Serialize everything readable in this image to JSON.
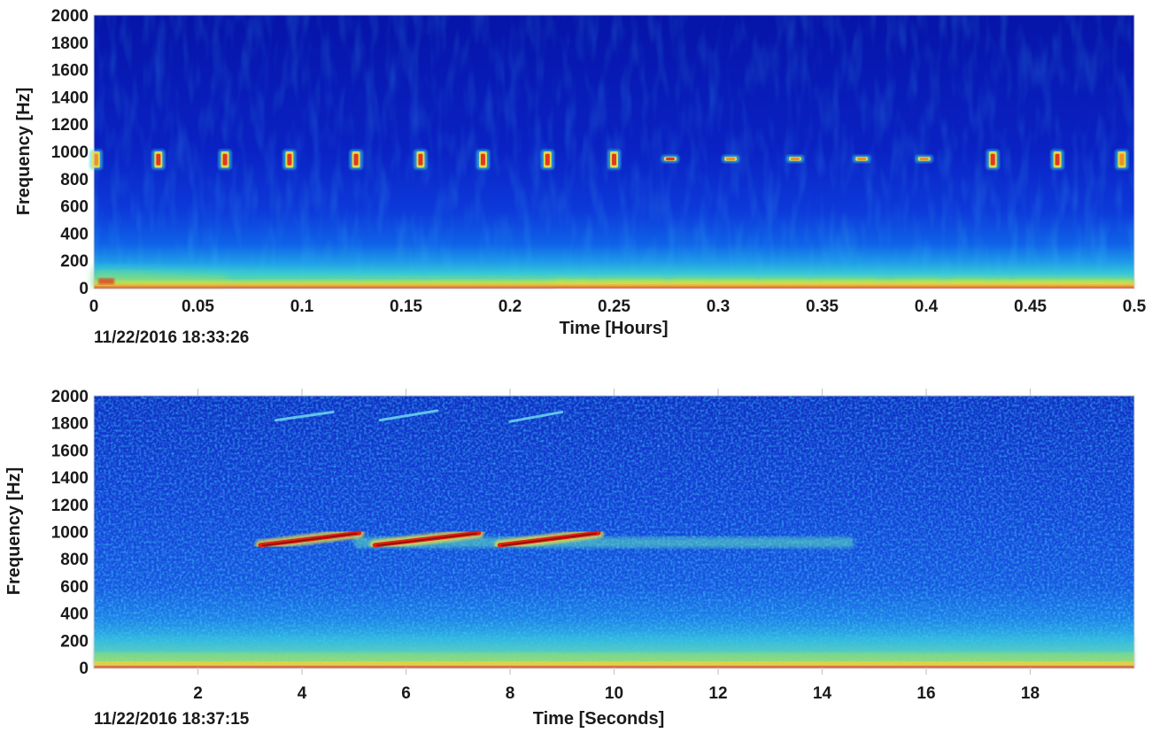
{
  "chart_data": [
    {
      "type": "heatmap",
      "title": "",
      "xlabel": "Time [Hours]",
      "ylabel": "Frequency [Hz]",
      "xlim": [
        0,
        0.5
      ],
      "ylim": [
        0,
        2000
      ],
      "x_ticks": [
        0,
        0.05,
        0.1,
        0.15,
        0.2,
        0.25,
        0.3,
        0.35,
        0.4,
        0.45,
        0.5
      ],
      "y_ticks": [
        0,
        200,
        400,
        600,
        800,
        1000,
        1200,
        1400,
        1600,
        1800,
        2000
      ],
      "timestamp": "11/22/2016 18:33:26",
      "colormap": "jet",
      "background_color": "#0a1fb8",
      "grid": false,
      "pulses": [
        {
          "t": 0.001,
          "f_low": 880,
          "f_high": 1000,
          "strength": 0.55
        },
        {
          "t": 0.031,
          "f_low": 880,
          "f_high": 1000,
          "strength": 0.85
        },
        {
          "t": 0.063,
          "f_low": 880,
          "f_high": 1000,
          "strength": 0.95
        },
        {
          "t": 0.094,
          "f_low": 880,
          "f_high": 1000,
          "strength": 0.75
        },
        {
          "t": 0.126,
          "f_low": 880,
          "f_high": 1000,
          "strength": 0.8
        },
        {
          "t": 0.157,
          "f_low": 880,
          "f_high": 1000,
          "strength": 0.8
        },
        {
          "t": 0.187,
          "f_low": 880,
          "f_high": 1000,
          "strength": 0.9
        },
        {
          "t": 0.218,
          "f_low": 880,
          "f_high": 1000,
          "strength": 0.95
        },
        {
          "t": 0.25,
          "f_low": 880,
          "f_high": 1000,
          "strength": 0.8
        },
        {
          "t": 0.277,
          "f_low": 930,
          "f_high": 960,
          "strength": 0.85
        },
        {
          "t": 0.306,
          "f_low": 930,
          "f_high": 960,
          "strength": 0.6
        },
        {
          "t": 0.337,
          "f_low": 930,
          "f_high": 960,
          "strength": 0.65
        },
        {
          "t": 0.369,
          "f_low": 930,
          "f_high": 960,
          "strength": 0.5
        },
        {
          "t": 0.399,
          "f_low": 930,
          "f_high": 960,
          "strength": 0.5
        },
        {
          "t": 0.432,
          "f_low": 880,
          "f_high": 1000,
          "strength": 0.75
        },
        {
          "t": 0.463,
          "f_low": 880,
          "f_high": 1000,
          "strength": 0.85
        },
        {
          "t": 0.494,
          "f_low": 880,
          "f_high": 1000,
          "strength": 0.6
        }
      ]
    },
    {
      "type": "heatmap",
      "title": "",
      "xlabel": "Time [Seconds]",
      "ylabel": "Frequency [Hz]",
      "xlim": [
        0,
        20
      ],
      "ylim": [
        0,
        2000
      ],
      "x_ticks": [
        2,
        4,
        6,
        8,
        10,
        12,
        14,
        16,
        18
      ],
      "y_ticks": [
        0,
        200,
        400,
        600,
        800,
        1000,
        1200,
        1400,
        1600,
        1800,
        2000
      ],
      "timestamp": "11/22/2016 18:37:15",
      "colormap": "jet",
      "background_color": "#1432d2",
      "grid": false,
      "chirps": [
        {
          "t0": 3.2,
          "t1": 5.1,
          "f0": 900,
          "f1": 990
        },
        {
          "t0": 5.4,
          "t1": 7.4,
          "f0": 900,
          "f1": 990
        },
        {
          "t0": 7.8,
          "t1": 9.7,
          "f0": 900,
          "f1": 990
        }
      ],
      "harmonics": [
        {
          "t0": 3.5,
          "t1": 4.6,
          "f0": 1820,
          "f1": 1880
        },
        {
          "t0": 5.5,
          "t1": 6.6,
          "f0": 1820,
          "f1": 1890
        },
        {
          "t0": 8.0,
          "t1": 9.0,
          "f0": 1810,
          "f1": 1880
        }
      ],
      "reverb_tail": {
        "t0": 5.0,
        "t1": 14.6,
        "f": 920
      }
    }
  ]
}
